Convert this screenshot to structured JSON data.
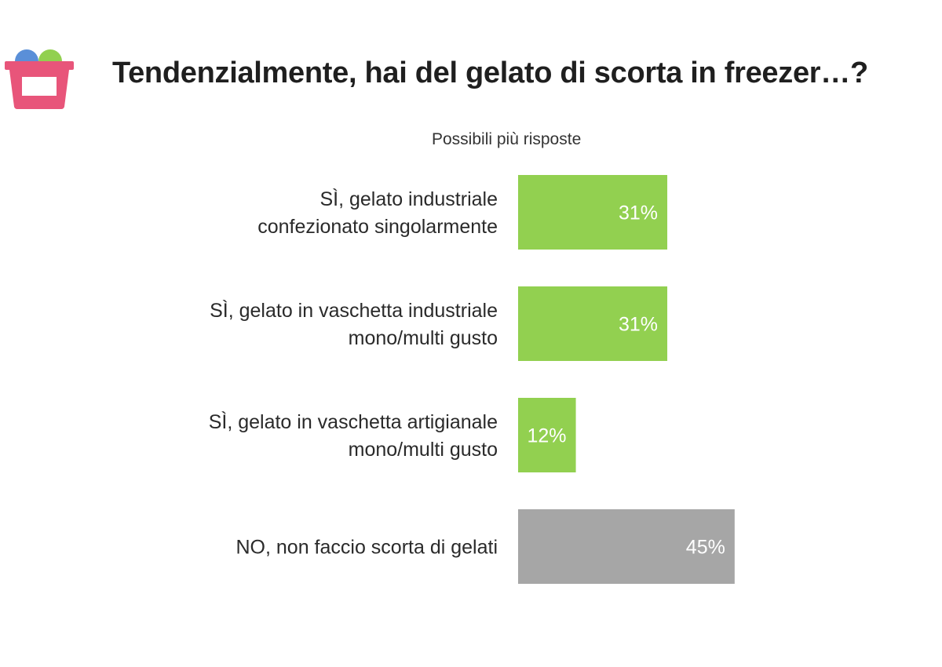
{
  "chart_data": {
    "type": "bar",
    "orientation": "horizontal",
    "title": "Tendenzialmente, hai del gelato di scorta in freezer…?",
    "subtitle": "Possibili più risposte",
    "categories": [
      [
        "SÌ, gelato industriale",
        "confezionato singolarmente"
      ],
      [
        "SÌ, gelato in vaschetta industriale",
        "mono/multi gusto"
      ],
      [
        "SÌ, gelato in vaschetta artigianale",
        "mono/multi gusto"
      ],
      [
        "NO, non faccio scorta di gelati"
      ]
    ],
    "values": [
      31,
      31,
      12,
      45
    ],
    "value_labels": [
      "31%",
      "31%",
      "12%",
      "45%"
    ],
    "bar_colors": [
      "#92d050",
      "#92d050",
      "#92d050",
      "#a6a6a6"
    ],
    "grid": false,
    "legend": "none"
  },
  "icon": "ice-cream-tub-icon"
}
